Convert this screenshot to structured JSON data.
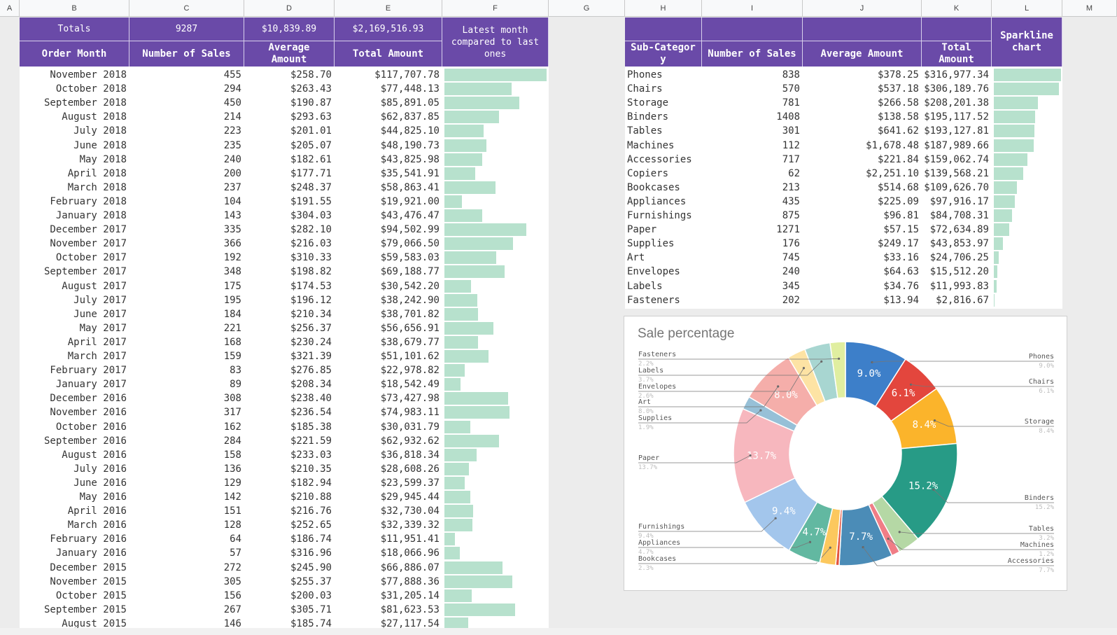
{
  "column_letters": [
    "A",
    "B",
    "C",
    "D",
    "E",
    "F",
    "G",
    "H",
    "I",
    "J",
    "K",
    "L",
    "M"
  ],
  "left_table": {
    "totals": [
      "Totals",
      "9287",
      "$10,839.89",
      "$2,169,516.93"
    ],
    "headers": [
      "Order Month",
      "Number of Sales",
      "Average Amount",
      "Total Amount",
      "Latest month compared to last ones"
    ],
    "rows": [
      [
        "November 2018",
        "455",
        "$258.70",
        "$117,707.78",
        117707.78
      ],
      [
        "October 2018",
        "294",
        "$263.43",
        "$77,448.13",
        77448.13
      ],
      [
        "September 2018",
        "450",
        "$190.87",
        "$85,891.05",
        85891.05
      ],
      [
        "August 2018",
        "214",
        "$293.63",
        "$62,837.85",
        62837.85
      ],
      [
        "July 2018",
        "223",
        "$201.01",
        "$44,825.10",
        44825.1
      ],
      [
        "June 2018",
        "235",
        "$205.07",
        "$48,190.73",
        48190.73
      ],
      [
        "May 2018",
        "240",
        "$182.61",
        "$43,825.98",
        43825.98
      ],
      [
        "April 2018",
        "200",
        "$177.71",
        "$35,541.91",
        35541.91
      ],
      [
        "March 2018",
        "237",
        "$248.37",
        "$58,863.41",
        58863.41
      ],
      [
        "February 2018",
        "104",
        "$191.55",
        "$19,921.00",
        19921.0
      ],
      [
        "January 2018",
        "143",
        "$304.03",
        "$43,476.47",
        43476.47
      ],
      [
        "December 2017",
        "335",
        "$282.10",
        "$94,502.99",
        94502.99
      ],
      [
        "November 2017",
        "366",
        "$216.03",
        "$79,066.50",
        79066.5
      ],
      [
        "October 2017",
        "192",
        "$310.33",
        "$59,583.03",
        59583.03
      ],
      [
        "September 2017",
        "348",
        "$198.82",
        "$69,188.77",
        69188.77
      ],
      [
        "August 2017",
        "175",
        "$174.53",
        "$30,542.20",
        30542.2
      ],
      [
        "July 2017",
        "195",
        "$196.12",
        "$38,242.90",
        38242.9
      ],
      [
        "June 2017",
        "184",
        "$210.34",
        "$38,701.82",
        38701.82
      ],
      [
        "May 2017",
        "221",
        "$256.37",
        "$56,656.91",
        56656.91
      ],
      [
        "April 2017",
        "168",
        "$230.24",
        "$38,679.77",
        38679.77
      ],
      [
        "March 2017",
        "159",
        "$321.39",
        "$51,101.62",
        51101.62
      ],
      [
        "February 2017",
        "83",
        "$276.85",
        "$22,978.82",
        22978.82
      ],
      [
        "January 2017",
        "89",
        "$208.34",
        "$18,542.49",
        18542.49
      ],
      [
        "December 2016",
        "308",
        "$238.40",
        "$73,427.98",
        73427.98
      ],
      [
        "November 2016",
        "317",
        "$236.54",
        "$74,983.11",
        74983.11
      ],
      [
        "October 2016",
        "162",
        "$185.38",
        "$30,031.79",
        30031.79
      ],
      [
        "September 2016",
        "284",
        "$221.59",
        "$62,932.62",
        62932.62
      ],
      [
        "August 2016",
        "158",
        "$233.03",
        "$36,818.34",
        36818.34
      ],
      [
        "July 2016",
        "136",
        "$210.35",
        "$28,608.26",
        28608.26
      ],
      [
        "June 2016",
        "129",
        "$182.94",
        "$23,599.37",
        23599.37
      ],
      [
        "May 2016",
        "142",
        "$210.88",
        "$29,945.44",
        29945.44
      ],
      [
        "April 2016",
        "151",
        "$216.76",
        "$32,730.04",
        32730.04
      ],
      [
        "March 2016",
        "128",
        "$252.65",
        "$32,339.32",
        32339.32
      ],
      [
        "February 2016",
        "64",
        "$186.74",
        "$11,951.41",
        11951.41
      ],
      [
        "January 2016",
        "57",
        "$316.96",
        "$18,066.96",
        18066.96
      ],
      [
        "December 2015",
        "272",
        "$245.90",
        "$66,886.07",
        66886.07
      ],
      [
        "November 2015",
        "305",
        "$255.37",
        "$77,888.36",
        77888.36
      ],
      [
        "October 2015",
        "156",
        "$200.03",
        "$31,205.14",
        31205.14
      ],
      [
        "September 2015",
        "267",
        "$305.71",
        "$81,623.53",
        81623.53
      ],
      [
        "August 2015",
        "146",
        "$185.74",
        "$27,117.54",
        27117.54
      ]
    ]
  },
  "right_table": {
    "headers": [
      "Sub-Category",
      "Number of Sales",
      "Average Amount",
      "Total Amount",
      "Sparkline chart"
    ],
    "rows": [
      [
        "Phones",
        "838",
        "$378.25",
        "$316,977.34",
        316977.34
      ],
      [
        "Chairs",
        "570",
        "$537.18",
        "$306,189.76",
        306189.76
      ],
      [
        "Storage",
        "781",
        "$266.58",
        "$208,201.38",
        208201.38
      ],
      [
        "Binders",
        "1408",
        "$138.58",
        "$195,117.52",
        195117.52
      ],
      [
        "Tables",
        "301",
        "$641.62",
        "$193,127.81",
        193127.81
      ],
      [
        "Machines",
        "112",
        "$1,678.48",
        "$187,989.66",
        187989.66
      ],
      [
        "Accessories",
        "717",
        "$221.84",
        "$159,062.74",
        159062.74
      ],
      [
        "Copiers",
        "62",
        "$2,251.10",
        "$139,568.21",
        139568.21
      ],
      [
        "Bookcases",
        "213",
        "$514.68",
        "$109,626.70",
        109626.7
      ],
      [
        "Appliances",
        "435",
        "$225.09",
        "$97,916.17",
        97916.17
      ],
      [
        "Furnishings",
        "875",
        "$96.81",
        "$84,708.31",
        84708.31
      ],
      [
        "Paper",
        "1271",
        "$57.15",
        "$72,634.89",
        72634.89
      ],
      [
        "Supplies",
        "176",
        "$249.17",
        "$43,853.97",
        43853.97
      ],
      [
        "Art",
        "745",
        "$33.16",
        "$24,706.25",
        24706.25
      ],
      [
        "Envelopes",
        "240",
        "$64.63",
        "$15,512.20",
        15512.2
      ],
      [
        "Labels",
        "345",
        "$34.76",
        "$11,993.83",
        11993.83
      ],
      [
        "Fasteners",
        "202",
        "$13.94",
        "$2,816.67",
        2816.67
      ]
    ]
  },
  "chart_data": {
    "type": "pie",
    "title": "Sale percentage",
    "donut": true,
    "legend": "callout-labels",
    "slices": [
      {
        "label": "Phones",
        "value": 9.0,
        "display": "9.0%",
        "color": "#3d7fc9"
      },
      {
        "label": "Chairs",
        "value": 6.1,
        "display": "6.1%",
        "color": "#e3463d"
      },
      {
        "label": "Storage",
        "value": 8.4,
        "display": "8.4%",
        "color": "#fbb42b"
      },
      {
        "label": "Binders",
        "value": 15.2,
        "display": "15.2%",
        "color": "#279b86"
      },
      {
        "label": "Tables",
        "value": 3.2,
        "display": "3.2%",
        "color": "#b5d8a5"
      },
      {
        "label": "Machines",
        "value": 1.2,
        "display": "1.2%",
        "color": "#f07d86"
      },
      {
        "label": "Accessories",
        "value": 7.7,
        "display": "7.7%",
        "color": "#4b8cb7"
      },
      {
        "label": "Copiers",
        "value": 0.5,
        "display": "",
        "color": "#e3553f"
      },
      {
        "label": "Bookcases",
        "value": 2.3,
        "display": "2.3%",
        "color": "#fcc85e"
      },
      {
        "label": "Appliances",
        "value": 4.7,
        "display": "4.7%",
        "color": "#62b8a1"
      },
      {
        "label": "Furnishings",
        "value": 9.4,
        "display": "9.4%",
        "color": "#a3c6ec"
      },
      {
        "label": "Paper",
        "value": 13.7,
        "display": "13.7%",
        "color": "#f7b7be"
      },
      {
        "label": "Supplies",
        "value": 1.9,
        "display": "1.9%",
        "color": "#97c0d7"
      },
      {
        "label": "Art",
        "value": 8.0,
        "display": "8.0%",
        "color": "#f5aeaa"
      },
      {
        "label": "Envelopes",
        "value": 2.6,
        "display": "2.6%",
        "color": "#fde3a4"
      },
      {
        "label": "Labels",
        "value": 3.7,
        "display": "3.7%",
        "color": "#a8d6d1"
      },
      {
        "label": "Fasteners",
        "value": 2.2,
        "display": "2.2%",
        "color": "#e0eea0"
      }
    ]
  }
}
